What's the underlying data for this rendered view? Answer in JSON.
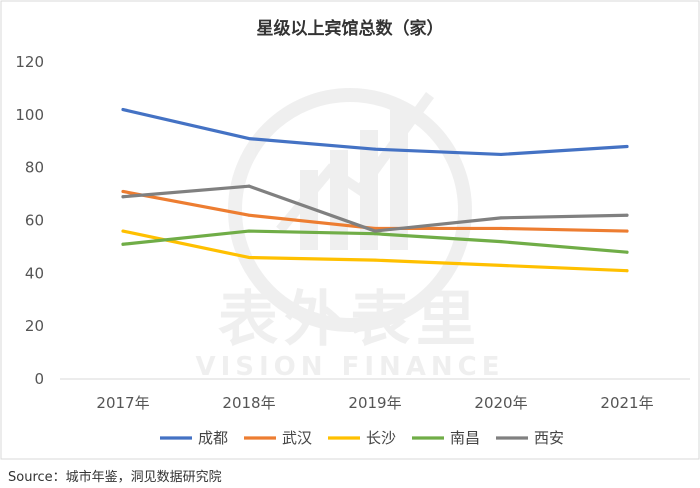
{
  "chart_data": {
    "type": "line",
    "title": "星级以上宾馆总数（家）",
    "categories": [
      "2017年",
      "2018年",
      "2019年",
      "2020年",
      "2021年"
    ],
    "ylim": [
      0,
      120
    ],
    "yticks": [
      0,
      20,
      40,
      60,
      80,
      100,
      120
    ],
    "grid": false,
    "legend_position": "bottom",
    "series": [
      {
        "name": "成都",
        "color": "#4472C4",
        "values": [
          102,
          91,
          87,
          85,
          88
        ]
      },
      {
        "name": "武汉",
        "color": "#ED7D31",
        "values": [
          71,
          62,
          57,
          57,
          56
        ]
      },
      {
        "name": "长沙",
        "color": "#FFC000",
        "values": [
          56,
          46,
          45,
          43,
          41
        ]
      },
      {
        "name": "南昌",
        "color": "#70AD47",
        "values": [
          51,
          56,
          55,
          52,
          48
        ]
      },
      {
        "name": "西安",
        "color": "#808080",
        "values": [
          69,
          73,
          56,
          61,
          62
        ]
      }
    ]
  },
  "watermark": {
    "title": "表外表里",
    "subtitle": "VISION FINANCE"
  },
  "source": "Source：城市年鉴，洞见数据研究院"
}
